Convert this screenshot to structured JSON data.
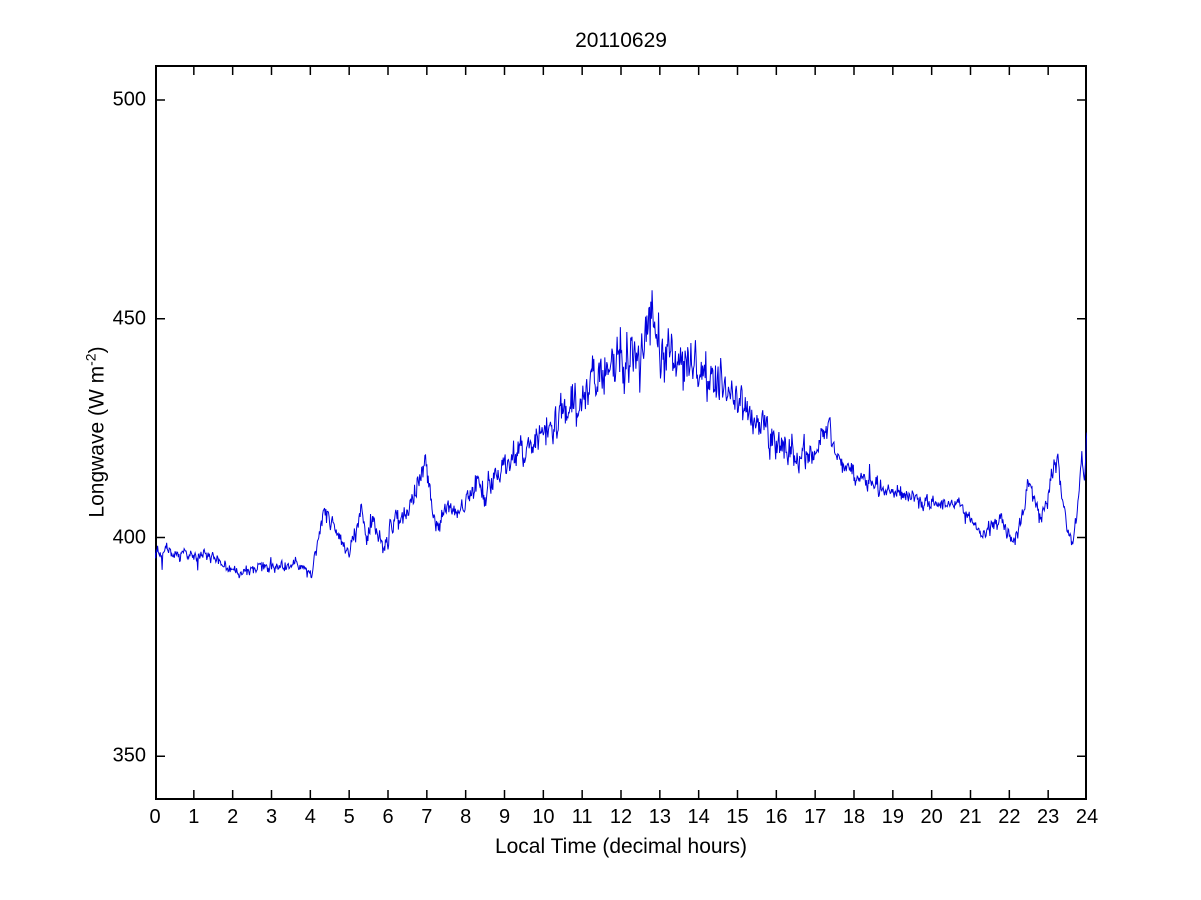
{
  "title": "20110629",
  "xlabel": "Local Time (decimal hours)",
  "ylabel": {
    "main": "Longwave (W m",
    "sup": "-2",
    "close": ")"
  },
  "colors": {
    "line": "#0000dd",
    "axis": "#000000",
    "background": "#ffffff"
  },
  "chart_data": {
    "type": "line",
    "title": "20110629",
    "xlabel": "Local Time (decimal hours)",
    "ylabel": "Longwave (W m^-2)",
    "xlim": [
      0,
      24
    ],
    "ylim": [
      340,
      508
    ],
    "xticks": [
      0,
      1,
      2,
      3,
      4,
      5,
      6,
      7,
      8,
      9,
      10,
      11,
      12,
      13,
      14,
      15,
      16,
      17,
      18,
      19,
      20,
      21,
      22,
      23,
      24
    ],
    "yticks": [
      350,
      400,
      450,
      500
    ],
    "grid": false,
    "legend": "none",
    "line_color": "#0000dd",
    "samples_per_hour": 60,
    "series": [
      {
        "name": "longwave",
        "trend_points": [
          [
            0,
            396.5
          ],
          [
            0.3,
            397
          ],
          [
            0.7,
            396
          ],
          [
            1,
            395.5
          ],
          [
            1.3,
            396
          ],
          [
            1.6,
            394.5
          ],
          [
            2,
            392.5
          ],
          [
            2.3,
            392
          ],
          [
            2.6,
            393
          ],
          [
            3,
            393.5
          ],
          [
            3.3,
            392.8
          ],
          [
            3.6,
            394
          ],
          [
            3.9,
            392.5
          ],
          [
            4.05,
            391.8
          ],
          [
            4.2,
            400
          ],
          [
            4.35,
            407.5
          ],
          [
            4.5,
            404
          ],
          [
            4.65,
            402
          ],
          [
            4.8,
            398.5
          ],
          [
            5,
            396.5
          ],
          [
            5.15,
            401
          ],
          [
            5.3,
            406.5
          ],
          [
            5.45,
            400
          ],
          [
            5.6,
            404.5
          ],
          [
            5.75,
            400
          ],
          [
            5.9,
            397.5
          ],
          [
            6.05,
            401.5
          ],
          [
            6.2,
            404
          ],
          [
            6.35,
            403
          ],
          [
            6.5,
            406.5
          ],
          [
            6.65,
            409.5
          ],
          [
            6.8,
            412
          ],
          [
            6.95,
            419
          ],
          [
            7.05,
            413
          ],
          [
            7.2,
            403
          ],
          [
            7.35,
            404
          ],
          [
            7.5,
            406.5
          ],
          [
            7.65,
            407
          ],
          [
            7.8,
            405.5
          ],
          [
            8,
            408.5
          ],
          [
            8.2,
            410.5
          ],
          [
            8.5,
            411.5
          ],
          [
            8.8,
            414
          ],
          [
            9,
            415.5
          ],
          [
            9.3,
            418
          ],
          [
            9.6,
            420.5
          ],
          [
            10,
            423.5
          ],
          [
            10.3,
            426.5
          ],
          [
            10.6,
            428.5
          ],
          [
            11,
            432.5
          ],
          [
            11.3,
            435.5
          ],
          [
            11.6,
            438.5
          ],
          [
            12,
            440.5
          ],
          [
            12.3,
            441.5
          ],
          [
            12.6,
            443.5
          ],
          [
            12.78,
            449
          ],
          [
            12.85,
            450
          ],
          [
            13,
            442.5
          ],
          [
            13.3,
            441
          ],
          [
            13.6,
            440
          ],
          [
            14,
            438
          ],
          [
            14.3,
            436.5
          ],
          [
            14.6,
            434
          ],
          [
            15,
            431.5
          ],
          [
            15.3,
            429.5
          ],
          [
            15.6,
            427
          ],
          [
            16,
            422.5
          ],
          [
            16.3,
            420
          ],
          [
            16.6,
            418.5
          ],
          [
            17,
            420
          ],
          [
            17.2,
            423
          ],
          [
            17.35,
            426
          ],
          [
            17.5,
            421
          ],
          [
            17.7,
            417.5
          ],
          [
            18,
            414.5
          ],
          [
            18.4,
            412
          ],
          [
            18.8,
            411
          ],
          [
            19.2,
            410
          ],
          [
            19.6,
            409
          ],
          [
            20,
            408
          ],
          [
            20.4,
            407.5
          ],
          [
            20.7,
            408.5
          ],
          [
            21,
            404
          ],
          [
            21.2,
            400.8
          ],
          [
            21.4,
            401.5
          ],
          [
            21.6,
            402.5
          ],
          [
            21.8,
            404
          ],
          [
            22,
            400
          ],
          [
            22.15,
            399.5
          ],
          [
            22.3,
            403.5
          ],
          [
            22.5,
            412
          ],
          [
            22.65,
            409
          ],
          [
            22.8,
            404.5
          ],
          [
            23,
            409
          ],
          [
            23.15,
            416
          ],
          [
            23.25,
            418.5
          ],
          [
            23.4,
            407
          ],
          [
            23.5,
            400.5
          ],
          [
            23.65,
            400.8
          ],
          [
            23.8,
            410
          ],
          [
            23.87,
            418
          ],
          [
            23.93,
            411
          ],
          [
            24,
            424
          ]
        ],
        "noise_amplitude_points": [
          [
            0,
            0.9
          ],
          [
            3,
            0.9
          ],
          [
            4,
            1
          ],
          [
            4.5,
            1.4
          ],
          [
            6,
            1.5
          ],
          [
            6.9,
            1.8
          ],
          [
            7.5,
            1.8
          ],
          [
            8,
            2
          ],
          [
            9,
            2.4
          ],
          [
            10,
            2.8
          ],
          [
            11,
            3.6
          ],
          [
            11.8,
            4.4
          ],
          [
            12.6,
            4.6
          ],
          [
            13,
            4.4
          ],
          [
            13.6,
            4
          ],
          [
            14,
            3.6
          ],
          [
            15,
            3
          ],
          [
            16,
            2.6
          ],
          [
            17,
            2.2
          ],
          [
            18,
            1.6
          ],
          [
            19,
            1.2
          ],
          [
            20,
            1.1
          ],
          [
            21,
            1
          ],
          [
            22,
            1.2
          ],
          [
            23,
            1.6
          ],
          [
            24,
            1.6
          ]
        ],
        "spikes": [
          [
            12.8,
            456.5
          ]
        ]
      }
    ]
  }
}
